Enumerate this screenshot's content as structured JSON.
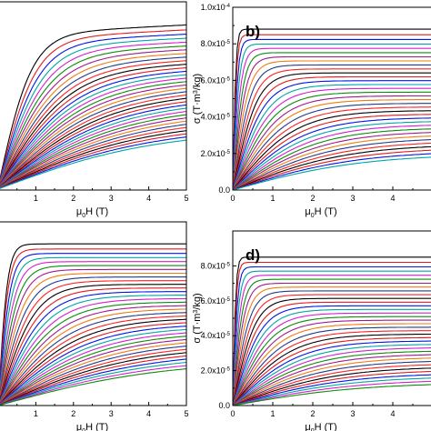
{
  "colors": [
    "#000000",
    "#e41a1c",
    "#0015e8",
    "#00a5a5",
    "#d41ed0",
    "#0a8c0a",
    "#a01a8c",
    "#f07c0f",
    "#1e3c8c",
    "#ff2020"
  ],
  "chart_data": [
    {
      "panel": "a",
      "label": "",
      "type": "line",
      "xlabel": "μ0H (T)",
      "ylabel": "",
      "xlim": [
        0,
        5
      ],
      "x_ticks": [
        "1",
        "2",
        "3",
        "4",
        "5"
      ],
      "y_ticks": [],
      "shape": "gradual",
      "curves": 34,
      "series_top_end": 8.6,
      "series_bottom_end": 2.6,
      "grid": false
    },
    {
      "panel": "b",
      "label": "b)",
      "type": "line",
      "xlabel": "μ0H (T)",
      "ylabel": "σ (T·m³/kg)",
      "xlim": [
        0,
        5
      ],
      "ylim": [
        0,
        0.0001
      ],
      "x_ticks": [
        "0",
        "1",
        "2",
        "3",
        "4"
      ],
      "y_ticks": [
        "0.0",
        "2.0x10⁻⁵",
        "4.0x10⁻⁵",
        "6.0x10⁻⁵",
        "8.0x10⁻⁵",
        "1.0x10⁻⁴"
      ],
      "shape": "saturating",
      "curves": 34,
      "series_top_end": 8.8,
      "series_bottom_end": 1.8,
      "grid": false
    },
    {
      "panel": "c",
      "label": "",
      "type": "line",
      "xlabel": "μ0H (T)",
      "ylabel": "",
      "xlim": [
        0,
        5
      ],
      "x_ticks": [
        "1",
        "2",
        "3",
        "4",
        "5"
      ],
      "y_ticks": [],
      "shape": "mixed",
      "curves": 36,
      "series_top_end": 8.8,
      "series_bottom_end": 2.0,
      "grid": false
    },
    {
      "panel": "d",
      "label": "d)",
      "type": "line",
      "xlabel": "μ0H (T)",
      "ylabel": "σ (T·m³/kg)",
      "xlim": [
        0,
        5
      ],
      "ylim": [
        0,
        0.0001
      ],
      "x_ticks": [
        "0",
        "1",
        "2",
        "3",
        "4"
      ],
      "y_ticks": [
        "0.0",
        "2.0x10⁻⁵",
        "4.0x10⁻⁵",
        "6.0x10⁻⁵",
        "8.0x10⁻⁵"
      ],
      "shape": "saturating",
      "curves": 36,
      "series_top_end": 8.5,
      "series_bottom_end": 1.2,
      "grid": false
    }
  ]
}
